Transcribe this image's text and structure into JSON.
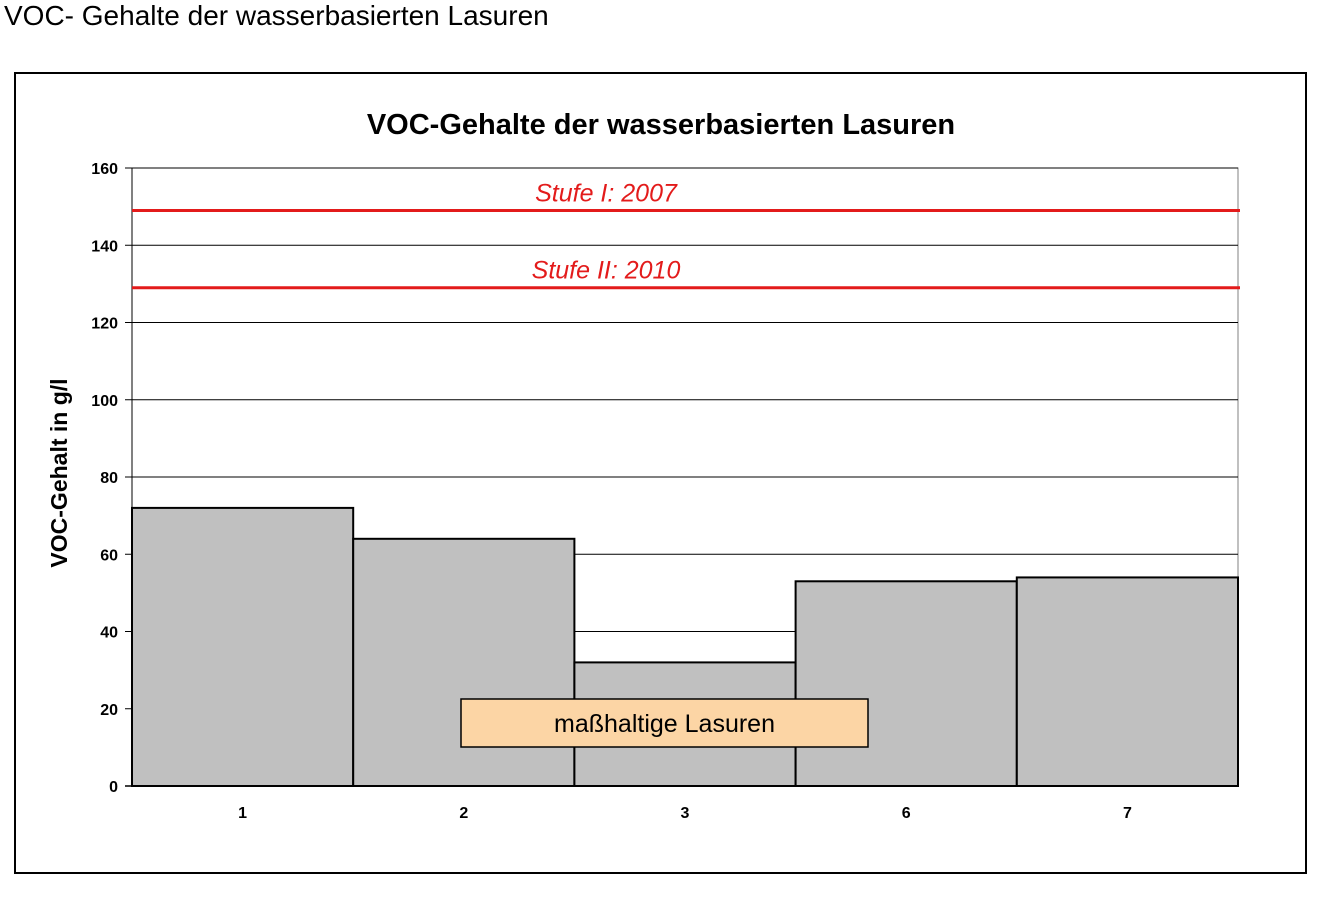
{
  "page": {
    "heading": "VOC- Gehalte der wasserbasierten Lasuren"
  },
  "chart_data": {
    "type": "bar",
    "title": "VOC-Gehalte der wasserbasierten Lasuren",
    "xlabel": "",
    "ylabel": "VOC-Gehalt in g/l",
    "categories": [
      "1",
      "2",
      "3",
      "6",
      "7"
    ],
    "values": [
      72,
      64,
      32,
      53,
      54
    ],
    "ylim": [
      0,
      160
    ],
    "yticks": [
      "0",
      "20",
      "40",
      "60",
      "80",
      "100",
      "120",
      "140",
      "160"
    ],
    "grid": true,
    "bar_color": "#c0c0c0",
    "reference_lines": [
      {
        "label": "Stufe I: 2007",
        "value": 149,
        "color": "#e31b1b"
      },
      {
        "label": "Stufe II: 2010",
        "value": 129,
        "color": "#e31b1b"
      }
    ],
    "annotation": {
      "text": "maßhaltige Lasuren",
      "fill": "#fcd5a5"
    }
  }
}
